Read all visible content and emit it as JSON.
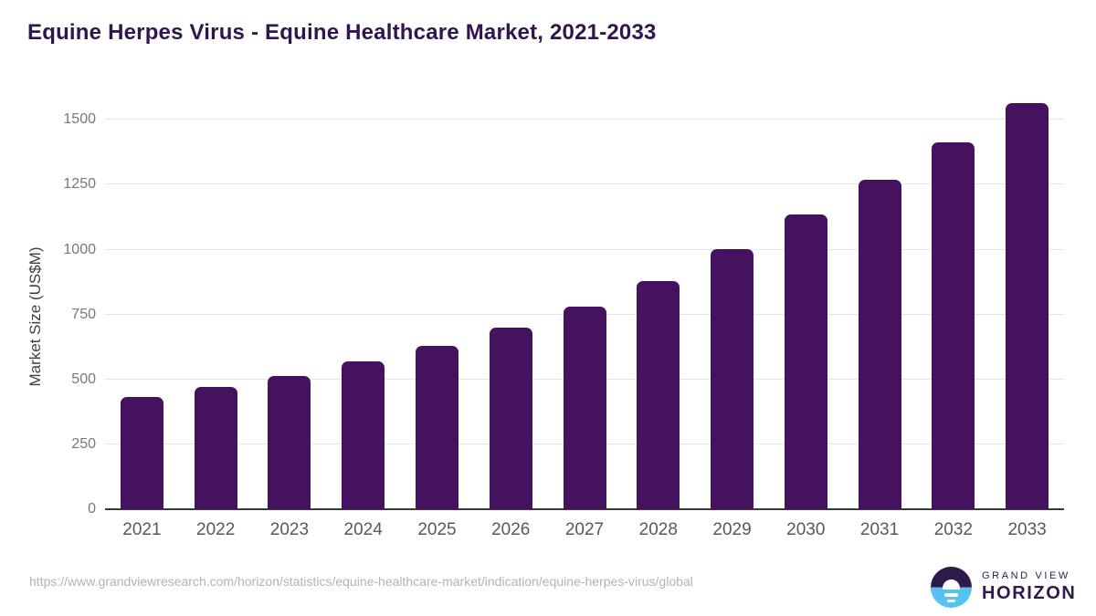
{
  "title": "Equine Herpes Virus - Equine Healthcare Market, 2021-2033",
  "chart_data": {
    "type": "bar",
    "title": "Equine Herpes Virus - Equine Healthcare Market, 2021-2033",
    "categories": [
      "2021",
      "2022",
      "2023",
      "2024",
      "2025",
      "2026",
      "2027",
      "2028",
      "2029",
      "2030",
      "2031",
      "2032",
      "2033"
    ],
    "values": [
      433,
      471,
      514,
      570,
      630,
      699,
      781,
      878,
      1001,
      1136,
      1270,
      1413,
      1566
    ],
    "xlabel": "",
    "ylabel": "Market Size (US$M)",
    "ylim": [
      0,
      1610
    ],
    "yticks": [
      0,
      250,
      500,
      750,
      1000,
      1250,
      1500
    ],
    "grid": true,
    "legend": false,
    "bar_color": "#45125f"
  },
  "footer": {
    "source_url": "https://www.grandviewresearch.com/horizon/statistics/equine-healthcare-market/indication/equine-herpes-virus/global",
    "logo": {
      "line1": "GRAND VIEW",
      "line2": "HORIZON"
    }
  },
  "colors": {
    "title": "#31154d",
    "bar": "#45125f",
    "grid": "#e6e6e8",
    "axis": "#3a3a3c",
    "y_tick": "#77787b",
    "x_tick": "#57585a",
    "url": "#b3b3b5",
    "logo_purple": "#2e1b4a",
    "logo_blue": "#58c2ee"
  }
}
